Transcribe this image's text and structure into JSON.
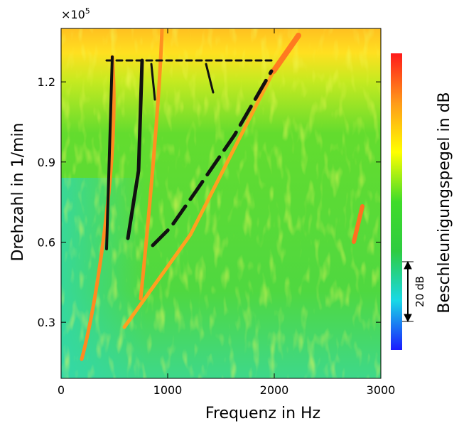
{
  "chart_data": {
    "type": "heatmap",
    "x_label": "Frequenz in Hz",
    "y_label": "Drehzahl in 1/min",
    "y_multiplier": {
      "base": "×10",
      "exponent": "5"
    },
    "colorbar_label": "Beschleunigungspegel in dB",
    "colorbar_annotation": "20 dB",
    "xlim": [
      0,
      3000
    ],
    "xticks": [
      0,
      1000,
      2000,
      3000
    ],
    "ylim": [
      0.09,
      1.4
    ],
    "yticks": [
      0.3,
      0.6,
      0.9,
      1.2
    ],
    "colormap": [
      "#1a1aff",
      "#19d9e6",
      "#2ecc40",
      "#3fdc2a",
      "#ffff00",
      "#ff9a1a",
      "#ff1a1a"
    ]
  }
}
